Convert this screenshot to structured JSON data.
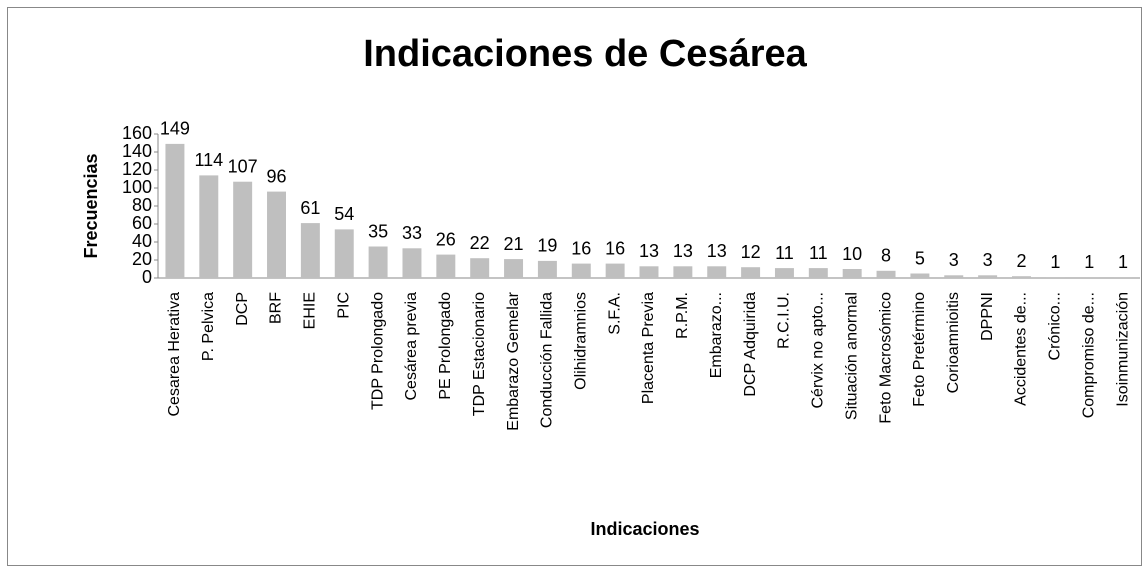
{
  "chart_data": {
    "type": "bar",
    "title": "Indicaciones de Cesárea",
    "x_label": "Indicaciones",
    "y_label": "Frecuencias",
    "categories": [
      "Cesarea Herativa",
      "P. Pelvica",
      "DCP",
      "BRF",
      "EHIE",
      "PIC",
      "TDP Prolongado",
      "Cesárea previa",
      "PE Prolongado",
      "TDP Estacionario",
      "Embarazo Gemelar",
      "Conducción Fallida",
      "Olihidramnios",
      "S.F.A.",
      "Placenta Previa",
      "R.P.M.",
      "Embarazo...",
      "DCP Adquirida",
      "R.C.I.U.",
      "Cérvix no apto...",
      "Situación anormal",
      "Feto Macrosómico",
      "Feto Pretérmino",
      "Corioamnioitis",
      "DPPNI",
      "Accidentes de...",
      "Crónico...",
      "Compromiso de...",
      "Isoinmunización"
    ],
    "values": [
      149,
      114,
      107,
      96,
      61,
      54,
      35,
      33,
      26,
      22,
      21,
      19,
      16,
      16,
      13,
      13,
      13,
      12,
      11,
      11,
      10,
      8,
      5,
      3,
      3,
      2,
      1,
      1,
      1
    ],
    "color": "#bfbfbf",
    "ylim": [
      0,
      160
    ],
    "yticks": [
      0,
      20,
      40,
      60,
      80,
      100,
      120,
      140,
      160
    ],
    "grid": false
  }
}
